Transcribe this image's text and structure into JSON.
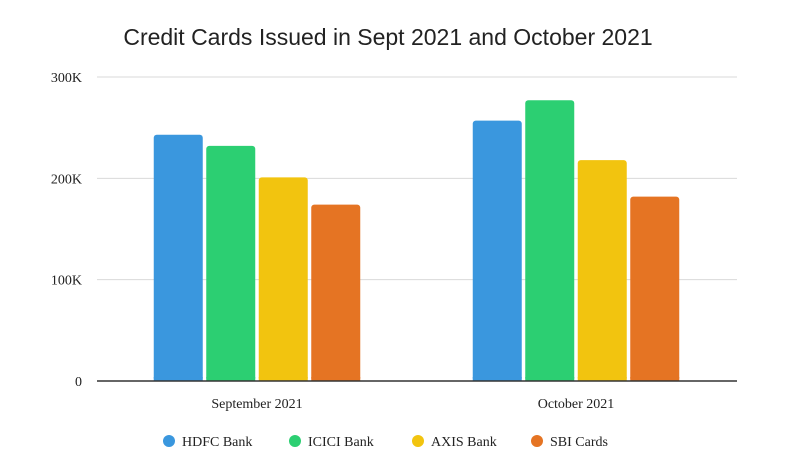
{
  "chart_data": {
    "type": "bar",
    "title": "Credit Cards Issued in Sept 2021 and October 2021",
    "xlabel": "",
    "ylabel": "",
    "categories": [
      "September 2021",
      "October 2021"
    ],
    "series": [
      {
        "name": "HDFC Bank",
        "color": "#3a97de",
        "values": [
          243000,
          257000
        ]
      },
      {
        "name": "ICICI Bank",
        "color": "#2ccf72",
        "values": [
          232000,
          277000
        ]
      },
      {
        "name": "AXIS Bank",
        "color": "#f2c40f",
        "values": [
          201000,
          218000
        ]
      },
      {
        "name": "SBI Cards",
        "color": "#e57423",
        "values": [
          174000,
          182000
        ]
      }
    ],
    "ylim": [
      0,
      300000
    ],
    "yticks": [
      {
        "value": 0,
        "label": "0"
      },
      {
        "value": 100000,
        "label": "100K"
      },
      {
        "value": 200000,
        "label": "200K"
      },
      {
        "value": 300000,
        "label": "300K"
      }
    ],
    "grid": true,
    "legend_position": "bottom"
  }
}
